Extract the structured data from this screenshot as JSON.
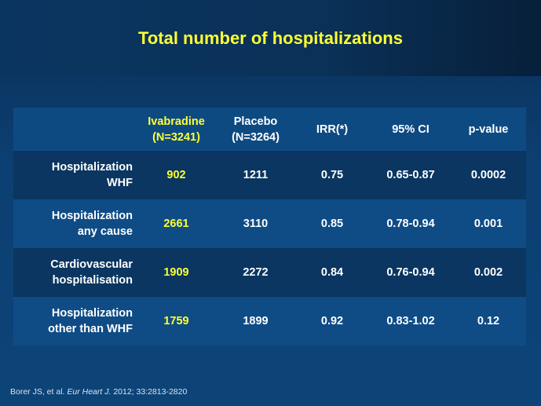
{
  "slide": {
    "title": "Total number of hospitalizations"
  },
  "table": {
    "headers": {
      "row_label": "",
      "ivabradine": "Ivabradine\n(N=3241)",
      "placebo": "Placebo\n(N=3264)",
      "irr": "IRR(*)",
      "ci": "95%  CI",
      "pvalue": "p-value"
    },
    "rows": [
      {
        "label": "Hospitalization\nWHF",
        "ivabradine": "902",
        "placebo": "1211",
        "irr": "0.75",
        "ci": "0.65-0.87",
        "pvalue": "0.0002"
      },
      {
        "label": "Hospitalization\nany cause",
        "ivabradine": "2661",
        "placebo": "3110",
        "irr": "0.85",
        "ci": "0.78-0.94",
        "pvalue": "0.001"
      },
      {
        "label": "Cardiovascular\nhospitalisation",
        "ivabradine": "1909",
        "placebo": "2272",
        "irr": "0.84",
        "ci": "0.76-0.94",
        "pvalue": "0.002"
      },
      {
        "label": "Hospitalization\nother than WHF",
        "ivabradine": "1759",
        "placebo": "1899",
        "irr": "0.92",
        "ci": "0.83-1.02",
        "pvalue": "0.12"
      }
    ]
  },
  "footnote": {
    "authors": "Borer JS, et al. ",
    "journal": "Eur Heart J.",
    "citation": " 2012; 33:2813-2820"
  },
  "colors": {
    "accent": "#ffff33",
    "background": "#0c3f72",
    "text": "#ffffff"
  }
}
